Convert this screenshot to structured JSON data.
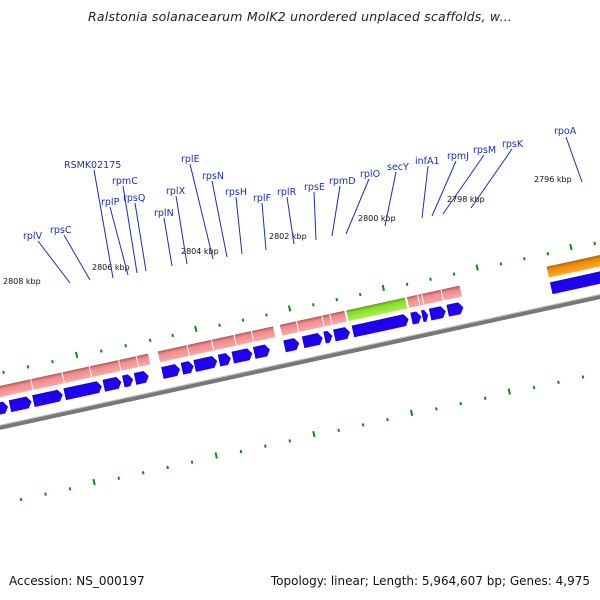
{
  "header": {
    "title": "Ralstonia solanacearum MolK2 unordered unplaced scaffolds, w..."
  },
  "footer": {
    "accession": "Accession: NS_000197",
    "topology": "Topology: linear; Length: 5,964,607 bp; Genes: 4,975"
  },
  "colors": {
    "gene_label": "#1a2fb8",
    "cds_arrow": "#1e00ee",
    "gene_band": "#f08a8a",
    "gene_band_dark": "#b45555",
    "secY_band": "#88dd22",
    "rpoA_band": "#f08a00",
    "tick": "#118811",
    "backbone": "#777777"
  },
  "scale_labels": [
    "2808 kbp",
    "2806 kbp",
    "2804 kbp",
    "2802 kbp",
    "2800 kbp",
    "2798 kbp",
    "2796 kbp"
  ],
  "gene_labels": [
    "rplV",
    "rpsC",
    "RSMK02175",
    "rplP",
    "rpmC",
    "rpsQ",
    "rplN",
    "rplX",
    "rplE",
    "rpsN",
    "rpsH",
    "rplF",
    "rplR",
    "rpsE",
    "rpmD",
    "rplO",
    "secY",
    "infA1",
    "rpmJ",
    "rpsM",
    "rpsK",
    "rpoA"
  ]
}
